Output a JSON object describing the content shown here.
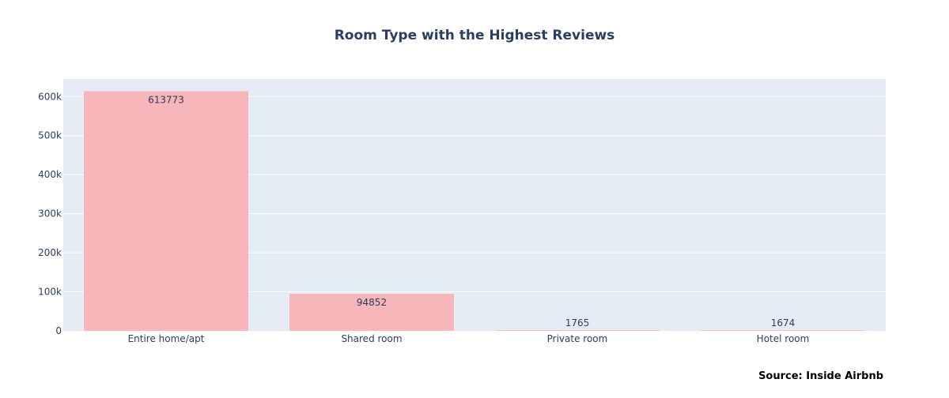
{
  "chart_data": {
    "type": "bar",
    "title": "Room Type with the Highest Reviews",
    "xlabel": "",
    "ylabel": "",
    "categories": [
      "Entire home/apt",
      "Shared room",
      "Private room",
      "Hotel room"
    ],
    "values": [
      613773,
      94852,
      1765,
      1674
    ],
    "data_labels": [
      "613773",
      "94852",
      "1765",
      "1674"
    ],
    "ylim": [
      0,
      645000
    ],
    "yticks": [
      0,
      100000,
      200000,
      300000,
      400000,
      500000,
      600000
    ],
    "ytick_labels": [
      "0",
      "100k",
      "200k",
      "300k",
      "400k",
      "500k",
      "600k"
    ],
    "grid": true,
    "legend": "none",
    "colors": {
      "bar": "#f7b6b9",
      "plot_background": "#e5ecf6",
      "grid": "#ffffff",
      "text": "#2a3f5f"
    },
    "source": "Source: Inside Airbnb"
  }
}
